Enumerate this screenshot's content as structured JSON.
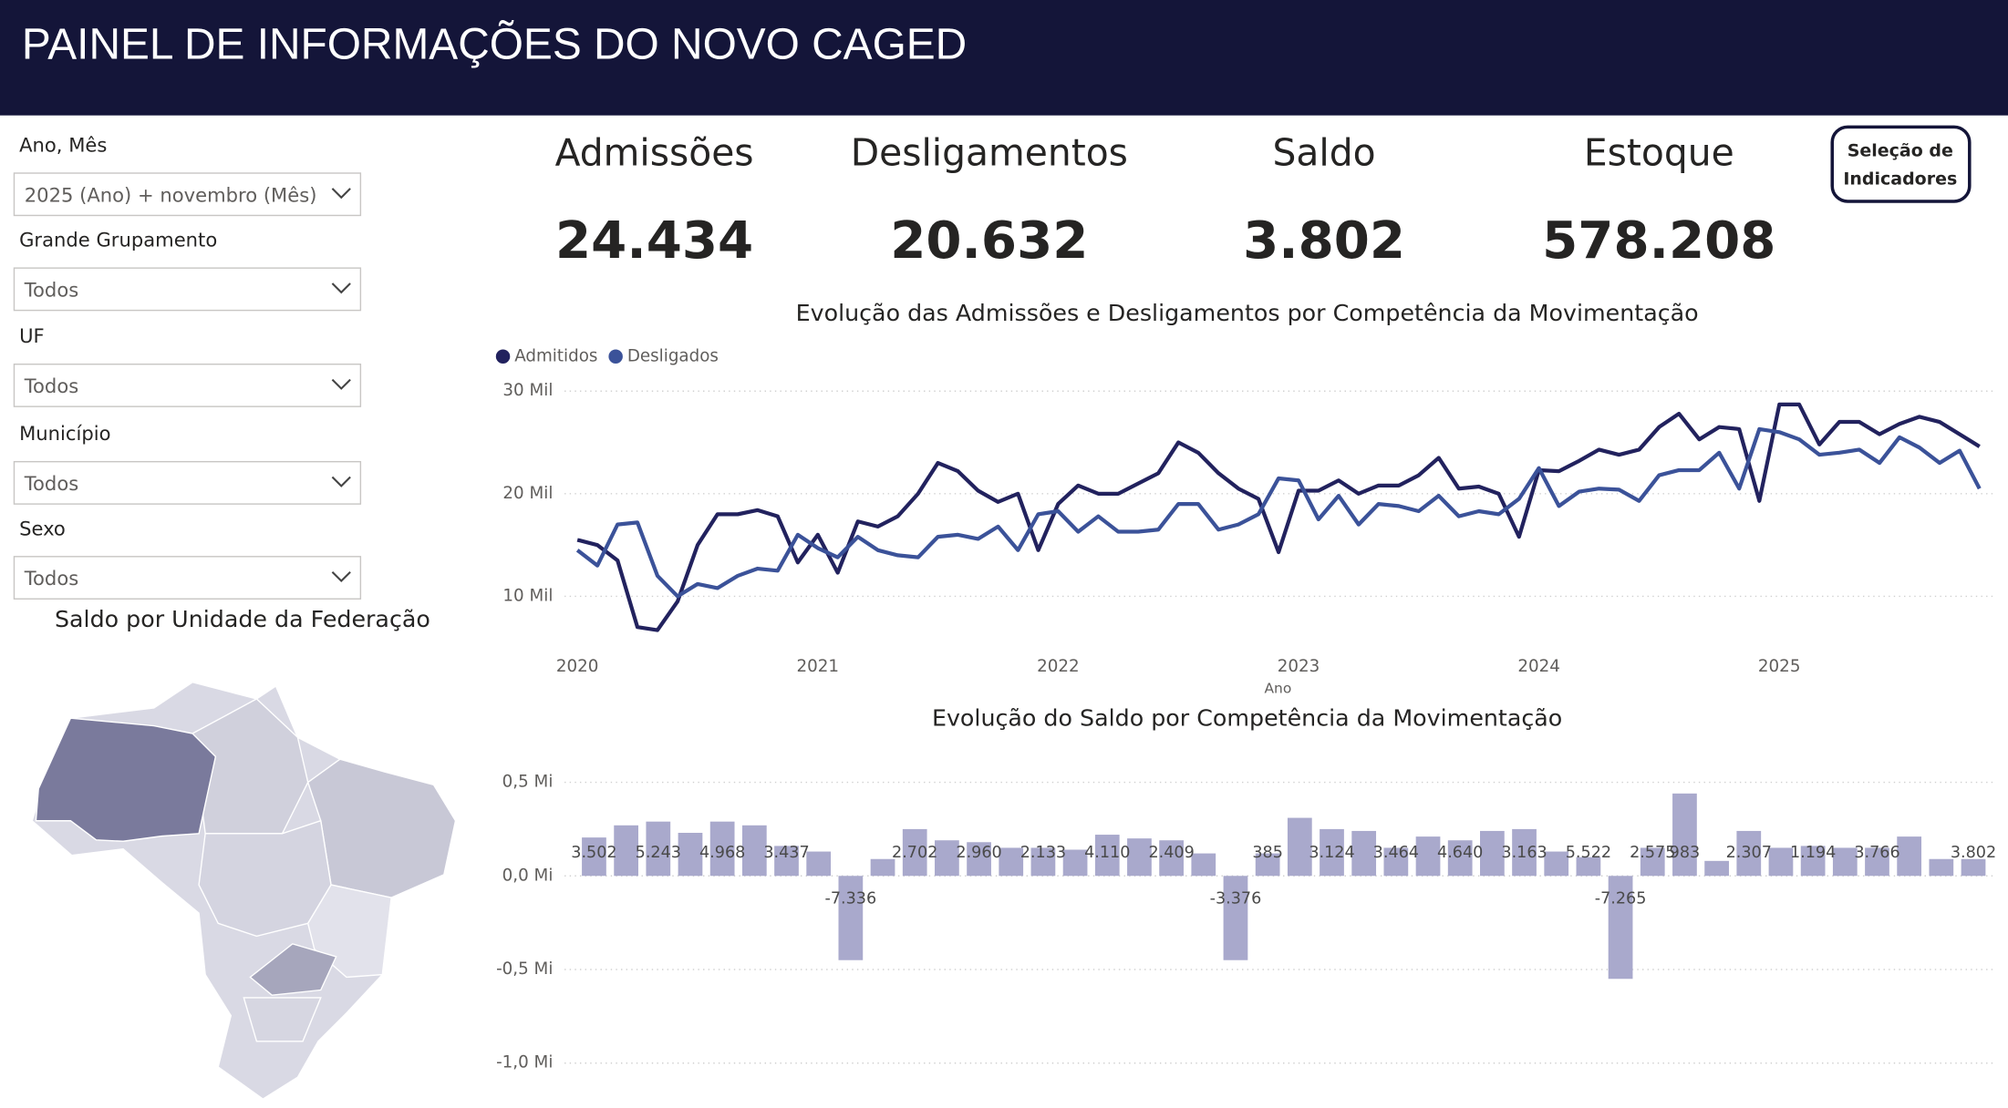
{
  "header": {
    "title": "PAINEL DE INFORMAÇÕES DO NOVO CAGED"
  },
  "filters": [
    {
      "label": "Ano, Mês",
      "value": "2025 (Ano) + novembro (Mês)"
    },
    {
      "label": "Grande Grupamento",
      "value": "Todos"
    },
    {
      "label": "UF",
      "value": "Todos"
    },
    {
      "label": "Município",
      "value": "Todos"
    },
    {
      "label": "Sexo",
      "value": "Todos"
    }
  ],
  "kpis": [
    {
      "label": "Admissões",
      "value": "24.434"
    },
    {
      "label": "Desligamentos",
      "value": "20.632"
    },
    {
      "label": "Saldo",
      "value": "3.802"
    },
    {
      "label": "Estoque",
      "value": "578.208"
    }
  ],
  "button": {
    "lines": [
      "Seleção de",
      "Indicadores"
    ]
  },
  "map": {
    "title": "Saldo por Unidade da Federação"
  },
  "chart_data": [
    {
      "type": "line",
      "title": "Evolução das Admissões e Desligamentos por Competência da Movimentação",
      "xlabel": "Ano",
      "x": [
        2020,
        2020.083,
        2020.167,
        2020.25,
        2020.333,
        2020.417,
        2020.5,
        2020.583,
        2020.667,
        2020.75,
        2020.833,
        2020.917,
        2021,
        2021.083,
        2021.167,
        2021.25,
        2021.333,
        2021.417,
        2021.5,
        2021.583,
        2021.667,
        2021.75,
        2021.833,
        2021.917,
        2022,
        2022.083,
        2022.167,
        2022.25,
        2022.333,
        2022.417,
        2022.5,
        2022.583,
        2022.667,
        2022.75,
        2022.833,
        2022.917,
        2023,
        2023.083,
        2023.167,
        2023.25,
        2023.333,
        2023.417,
        2023.5,
        2023.583,
        2023.667,
        2023.75,
        2023.833,
        2023.917,
        2024,
        2024.083,
        2024.167,
        2024.25,
        2024.333,
        2024.417,
        2024.5,
        2024.583,
        2024.667,
        2024.75,
        2024.833,
        2024.917,
        2025,
        2025.083,
        2025.167,
        2025.25,
        2025.333,
        2025.417,
        2025.5,
        2025.583,
        2025.667,
        2025.75,
        2025.833
      ],
      "series": [
        {
          "name": "Admitidos",
          "color": "#22225e",
          "values": [
            15500,
            15000,
            13500,
            7000,
            6700,
            9500,
            15000,
            18000,
            18000,
            18400,
            17800,
            13300,
            16000,
            12300,
            17300,
            16800,
            17800,
            20000,
            23000,
            22200,
            20300,
            19200,
            20000,
            14500,
            19000,
            20800,
            20000,
            20000,
            21000,
            22000,
            25000,
            24000,
            22000,
            20500,
            19500,
            14300,
            20300,
            20300,
            21300,
            20000,
            20800,
            20800,
            21800,
            23500,
            20500,
            20700,
            20000,
            15800,
            22300,
            22200,
            23200,
            24300,
            23800,
            24300,
            26500,
            27800,
            25300,
            26500,
            26300,
            19300,
            28700,
            28700,
            24800,
            27000,
            27000,
            25800,
            26800,
            27500,
            27000,
            25800,
            24600
          ]
        },
        {
          "name": "Desligados",
          "color": "#3b5299",
          "values": [
            14500,
            13000,
            17000,
            17200,
            12000,
            10000,
            11200,
            10800,
            12000,
            12700,
            12500,
            16000,
            14700,
            13800,
            15800,
            14500,
            14000,
            13800,
            15800,
            16000,
            15600,
            16800,
            14500,
            18000,
            18300,
            16300,
            17800,
            16300,
            16300,
            16500,
            19000,
            19000,
            16500,
            17000,
            18000,
            21500,
            21300,
            17500,
            19800,
            17000,
            19000,
            18800,
            18300,
            19800,
            17800,
            18300,
            18000,
            19500,
            22500,
            18800,
            20200,
            20500,
            20400,
            19300,
            21800,
            22300,
            22300,
            24000,
            20500,
            26300,
            26000,
            25300,
            23800,
            24000,
            24300,
            23000,
            25500,
            24500,
            23000,
            24200,
            20500
          ]
        }
      ],
      "xlim": [
        2020,
        2025.85
      ],
      "xticks": [
        2020,
        2021,
        2022,
        2023,
        2024,
        2025
      ],
      "ylim": [
        5000,
        31000
      ],
      "yticks": [
        {
          "value": 10000,
          "label": "10 Mil"
        },
        {
          "value": 20000,
          "label": "20 Mil"
        },
        {
          "value": 30000,
          "label": "30 Mil"
        }
      ],
      "grid": true
    },
    {
      "type": "bar",
      "title": "Evolução do Saldo por Competência da Movimentação",
      "color": "#a9a9cc",
      "values": [
        0.205,
        0.27,
        0.29,
        0.23,
        0.29,
        0.27,
        0.16,
        0.13,
        -0.45,
        0.09,
        0.25,
        0.19,
        0.18,
        0.15,
        0.15,
        0.14,
        0.22,
        0.2,
        0.19,
        0.12,
        -0.45,
        0.12,
        0.31,
        0.25,
        0.24,
        0.15,
        0.21,
        0.19,
        0.24,
        0.25,
        0.13,
        0.1,
        -0.55,
        0.15,
        0.44,
        0.08,
        0.24,
        0.15,
        0.16,
        0.15,
        0.15,
        0.21,
        0.09,
        0.09
      ],
      "annotations": [
        "3.502",
        null,
        "5.243",
        null,
        "4.968",
        null,
        "3.437",
        null,
        "-7.336",
        null,
        "2.702",
        null,
        "2.960",
        null,
        "2.133",
        null,
        "4.110",
        null,
        "2.409",
        null,
        "-3.376",
        "385",
        null,
        "3.124",
        null,
        "3.464",
        null,
        "4.640",
        null,
        "3.163",
        null,
        "5.522",
        "-7.265",
        "2.575",
        "983",
        null,
        "2.307",
        null,
        "1.194",
        null,
        "3.766",
        null,
        null,
        "3.802"
      ],
      "ylim": [
        -1.05,
        0.6
      ],
      "yticks": [
        {
          "value": 0.5,
          "label": "0,5 Mi"
        },
        {
          "value": 0,
          "label": "0,0 Mi"
        },
        {
          "value": -0.5,
          "label": "-0,5 Mi"
        },
        {
          "value": -1.0,
          "label": "-1,0 Mi"
        }
      ],
      "grid": true
    }
  ]
}
